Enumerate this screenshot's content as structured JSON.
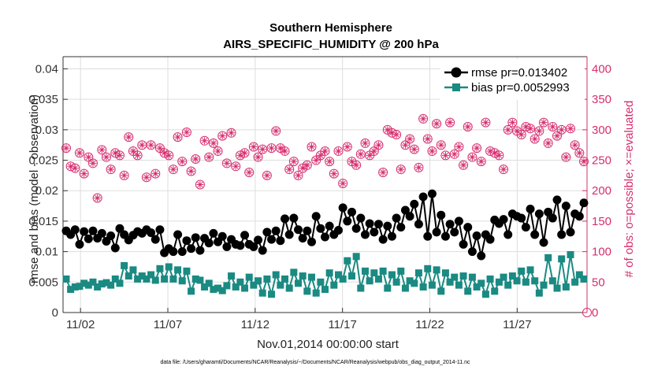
{
  "chart_data": {
    "type": "line",
    "title": "Southern Hemisphere",
    "subtitle": "AIRS_SPECIFIC_HUMIDITY @ 200 hPa",
    "xlabel": "Nov.01,2014 00:00:00 start",
    "ylabel_left": "rmse and bias (model - observation)",
    "ylabel_right": "# of obs: o=possible; ×=evaluated",
    "footer": "data file: /Users/gharamti/Documents/NCAR/Reanalysis/~/Documents/NCAR/Reanalysis/webpub/obs_diag_output_2014-11.nc",
    "x_ticks": [
      "11/02",
      "11/07",
      "11/12",
      "11/17",
      "11/22",
      "11/27"
    ],
    "x_tick_days": [
      2,
      7,
      12,
      17,
      22,
      27
    ],
    "xlim_days": [
      1.0,
      31.0
    ],
    "ylim_left": [
      0,
      0.042
    ],
    "ylim_right": [
      0,
      420
    ],
    "yticks_left": [
      "0",
      "0.005",
      "0.01",
      "0.015",
      "0.02",
      "0.025",
      "0.03",
      "0.035",
      "0.04"
    ],
    "yticks_right": [
      "0",
      "50",
      "100",
      "150",
      "200",
      "250",
      "300",
      "350",
      "400"
    ],
    "grid": true,
    "legend_position": "top-right",
    "colors": {
      "rmse": "#000000",
      "bias": "#1a8a82",
      "obs": "#d62d6e"
    },
    "series": [
      {
        "name": "rmse pr=0.013402",
        "axis": "left",
        "values": [
          0.0134,
          0.0128,
          0.0136,
          0.0112,
          0.0133,
          0.0121,
          0.0134,
          0.0122,
          0.013,
          0.0117,
          0.0126,
          0.0106,
          0.0138,
          0.0128,
          0.0119,
          0.0127,
          0.0133,
          0.013,
          0.0136,
          0.0131,
          0.012,
          0.0136,
          0.0098,
          0.0105,
          0.01,
          0.0128,
          0.01,
          0.0118,
          0.0105,
          0.0123,
          0.0102,
          0.0122,
          0.0114,
          0.013,
          0.0116,
          0.0125,
          0.0108,
          0.012,
          0.0112,
          0.011,
          0.0127,
          0.0112,
          0.0108,
          0.0119,
          0.0102,
          0.0132,
          0.012,
          0.0134,
          0.0118,
          0.0154,
          0.0128,
          0.0155,
          0.0136,
          0.0122,
          0.0134,
          0.0116,
          0.0158,
          0.0138,
          0.0124,
          0.0142,
          0.0128,
          0.0135,
          0.0172,
          0.015,
          0.0165,
          0.0138,
          0.0155,
          0.0128,
          0.0146,
          0.0132,
          0.0145,
          0.012,
          0.0142,
          0.0125,
          0.0155,
          0.014,
          0.0168,
          0.0158,
          0.0178,
          0.0145,
          0.019,
          0.0125,
          0.0195,
          0.0132,
          0.016,
          0.0125,
          0.0145,
          0.0132,
          0.015,
          0.0112,
          0.014,
          0.01,
          0.0126,
          0.0093,
          0.0128,
          0.012,
          0.0152,
          0.0146,
          0.0153,
          0.0128,
          0.0162,
          0.0158,
          0.0155,
          0.014,
          0.017,
          0.0128,
          0.0162,
          0.0115,
          0.0165,
          0.0155,
          0.0185,
          0.0128,
          0.0175,
          0.0132,
          0.0162,
          0.0158,
          0.018
        ]
      },
      {
        "name": "bias pr=0.0052993",
        "axis": "left",
        "values": [
          0.0055,
          0.0038,
          0.0042,
          0.0043,
          0.0048,
          0.0045,
          0.005,
          0.0042,
          0.0047,
          0.0049,
          0.0045,
          0.0055,
          0.0048,
          0.0077,
          0.006,
          0.007,
          0.0055,
          0.006,
          0.0055,
          0.0062,
          0.0053,
          0.0072,
          0.0055,
          0.0075,
          0.0055,
          0.007,
          0.0052,
          0.0068,
          0.0035,
          0.0055,
          0.0053,
          0.0042,
          0.0048,
          0.0038,
          0.004,
          0.0036,
          0.0044,
          0.006,
          0.0042,
          0.005,
          0.004,
          0.0058,
          0.0045,
          0.0052,
          0.0032,
          0.0055,
          0.003,
          0.0062,
          0.0045,
          0.0055,
          0.004,
          0.0066,
          0.0048,
          0.006,
          0.0035,
          0.0058,
          0.0032,
          0.005,
          0.0038,
          0.0065,
          0.0045,
          0.0062,
          0.0055,
          0.0085,
          0.006,
          0.0092,
          0.004,
          0.0068,
          0.0052,
          0.0065,
          0.0055,
          0.0068,
          0.004,
          0.0062,
          0.005,
          0.0068,
          0.004,
          0.0052,
          0.0048,
          0.0065,
          0.0042,
          0.0072,
          0.0045,
          0.007,
          0.0035,
          0.0065,
          0.005,
          0.0058,
          0.0045,
          0.006,
          0.0035,
          0.0058,
          0.0042,
          0.0048,
          0.003,
          0.0055,
          0.0035,
          0.005,
          0.0058,
          0.0045,
          0.006,
          0.0052,
          0.0068,
          0.005,
          0.007,
          0.0052,
          0.0032,
          0.0045,
          0.009,
          0.0052,
          0.004,
          0.0088,
          0.0042,
          0.0095,
          0.005,
          0.0062,
          0.0055
        ]
      },
      {
        "name": "# of obs (possible/evaluated)",
        "axis": "right",
        "values": [
          270,
          240,
          237,
          262,
          228,
          255,
          245,
          188,
          267,
          255,
          235,
          262,
          258,
          225,
          288,
          265,
          258,
          275,
          222,
          275,
          228,
          270,
          262,
          258,
          235,
          288,
          248,
          296,
          232,
          252,
          210,
          282,
          255,
          278,
          265,
          290,
          245,
          295,
          240,
          258,
          262,
          230,
          272,
          255,
          268,
          225,
          270,
          298,
          270,
          265,
          235,
          248,
          225,
          237,
          242,
          272,
          250,
          258,
          265,
          248,
          228,
          265,
          212,
          272,
          248,
          242,
          260,
          278,
          258,
          265,
          275,
          230,
          300,
          295,
          292,
          235,
          275,
          285,
          268,
          238,
          318,
          285,
          265,
          310,
          275,
          258,
          312,
          260,
          272,
          242,
          305,
          255,
          270,
          248,
          312,
          265,
          262,
          258,
          235,
          300,
          312,
          298,
          292,
          305,
          302,
          285,
          298,
          312,
          278,
          305,
          290,
          300,
          255,
          302,
          275,
          262,
          248
        ]
      }
    ]
  }
}
